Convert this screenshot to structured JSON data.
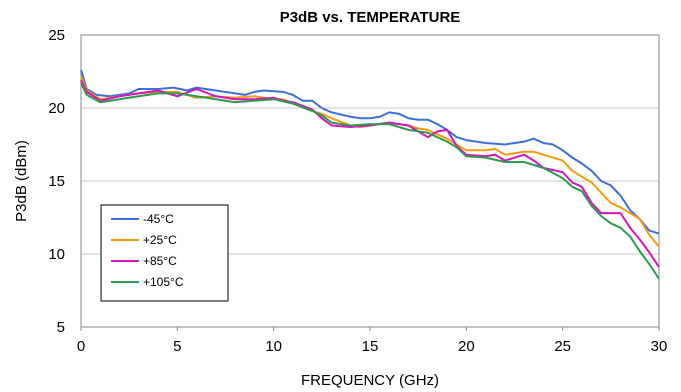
{
  "chart_data": {
    "type": "line",
    "title": "P3dB vs. TEMPERATURE",
    "xlabel": "FREQUENCY (GHz)",
    "ylabel": "P3dB (dBm)",
    "xlim": [
      0,
      30
    ],
    "ylim": [
      5,
      25
    ],
    "xticks": [
      0,
      5,
      10,
      15,
      20,
      25,
      30
    ],
    "yticks": [
      5,
      10,
      15,
      20,
      25
    ],
    "grid": "horizontal",
    "legend_position": "bottom-left",
    "series": [
      {
        "name": "-45°C",
        "color": "#3a70d8",
        "points": [
          [
            0,
            22.6
          ],
          [
            0.3,
            21.3
          ],
          [
            0.8,
            20.9
          ],
          [
            1.5,
            20.8
          ],
          [
            2.5,
            21.0
          ],
          [
            3.0,
            21.3
          ],
          [
            4.0,
            21.3
          ],
          [
            4.8,
            21.4
          ],
          [
            5.5,
            21.2
          ],
          [
            6.0,
            21.4
          ],
          [
            7.0,
            21.2
          ],
          [
            8.0,
            21.0
          ],
          [
            8.5,
            20.9
          ],
          [
            9.0,
            21.1
          ],
          [
            9.5,
            21.2
          ],
          [
            10.5,
            21.1
          ],
          [
            11.0,
            20.9
          ],
          [
            11.5,
            20.5
          ],
          [
            12.0,
            20.5
          ],
          [
            12.5,
            20.0
          ],
          [
            13.0,
            19.7
          ],
          [
            14.0,
            19.4
          ],
          [
            14.5,
            19.3
          ],
          [
            15.0,
            19.3
          ],
          [
            15.5,
            19.4
          ],
          [
            16.0,
            19.7
          ],
          [
            16.5,
            19.6
          ],
          [
            17.0,
            19.3
          ],
          [
            17.5,
            19.2
          ],
          [
            18.0,
            19.2
          ],
          [
            18.5,
            18.9
          ],
          [
            19.0,
            18.5
          ],
          [
            19.5,
            18.0
          ],
          [
            20.0,
            17.8
          ],
          [
            21.0,
            17.6
          ],
          [
            22.0,
            17.5
          ],
          [
            22.5,
            17.6
          ],
          [
            23.0,
            17.7
          ],
          [
            23.5,
            17.9
          ],
          [
            24.0,
            17.6
          ],
          [
            24.5,
            17.5
          ],
          [
            25.0,
            17.1
          ],
          [
            25.5,
            16.6
          ],
          [
            26.0,
            16.2
          ],
          [
            26.5,
            15.7
          ],
          [
            27.0,
            15.0
          ],
          [
            27.5,
            14.7
          ],
          [
            28.0,
            14.0
          ],
          [
            28.5,
            13.0
          ],
          [
            29.0,
            12.4
          ],
          [
            29.5,
            11.6
          ],
          [
            30.0,
            11.4
          ]
        ]
      },
      {
        "name": "+25°C",
        "color": "#f59a10",
        "points": [
          [
            0,
            22.2
          ],
          [
            0.3,
            21.2
          ],
          [
            1.0,
            20.6
          ],
          [
            2.0,
            20.8
          ],
          [
            3.0,
            21.0
          ],
          [
            4.0,
            21.1
          ],
          [
            5.0,
            21.1
          ],
          [
            6.0,
            20.7
          ],
          [
            7.0,
            20.8
          ],
          [
            8.0,
            20.7
          ],
          [
            9.0,
            20.8
          ],
          [
            10.0,
            20.6
          ],
          [
            10.5,
            20.6
          ],
          [
            11.0,
            20.3
          ],
          [
            12.0,
            19.8
          ],
          [
            12.5,
            19.6
          ],
          [
            13.0,
            19.3
          ],
          [
            14.0,
            18.8
          ],
          [
            14.5,
            18.7
          ],
          [
            15.0,
            18.8
          ],
          [
            16.0,
            19.0
          ],
          [
            17.0,
            18.8
          ],
          [
            17.5,
            18.6
          ],
          [
            18.0,
            18.5
          ],
          [
            18.5,
            18.2
          ],
          [
            19.0,
            17.9
          ],
          [
            19.5,
            17.5
          ],
          [
            20.0,
            17.1
          ],
          [
            21.0,
            17.1
          ],
          [
            21.5,
            17.2
          ],
          [
            22.0,
            16.8
          ],
          [
            23.0,
            17.0
          ],
          [
            23.5,
            17.0
          ],
          [
            24.0,
            16.8
          ],
          [
            25.0,
            16.4
          ],
          [
            25.5,
            15.7
          ],
          [
            26.0,
            15.3
          ],
          [
            26.5,
            14.9
          ],
          [
            27.0,
            14.2
          ],
          [
            27.5,
            13.5
          ],
          [
            28.0,
            13.2
          ],
          [
            28.5,
            12.8
          ],
          [
            29.0,
            12.4
          ],
          [
            29.5,
            11.3
          ],
          [
            30.0,
            10.5
          ]
        ]
      },
      {
        "name": "+85°C",
        "color": "#d515c0",
        "points": [
          [
            0,
            21.9
          ],
          [
            0.3,
            21.1
          ],
          [
            1.0,
            20.5
          ],
          [
            2.0,
            20.8
          ],
          [
            3.0,
            21.0
          ],
          [
            4.0,
            21.2
          ],
          [
            5.0,
            20.8
          ],
          [
            6.0,
            21.3
          ],
          [
            7.0,
            20.8
          ],
          [
            8.0,
            20.6
          ],
          [
            9.0,
            20.6
          ],
          [
            10.0,
            20.7
          ],
          [
            10.5,
            20.5
          ],
          [
            11.0,
            20.4
          ],
          [
            12.0,
            19.9
          ],
          [
            12.5,
            19.3
          ],
          [
            13.0,
            18.8
          ],
          [
            14.0,
            18.7
          ],
          [
            15.0,
            18.8
          ],
          [
            16.0,
            19.0
          ],
          [
            16.5,
            18.9
          ],
          [
            17.0,
            18.8
          ],
          [
            17.5,
            18.4
          ],
          [
            18.0,
            18.0
          ],
          [
            18.5,
            18.4
          ],
          [
            19.0,
            18.5
          ],
          [
            19.5,
            17.4
          ],
          [
            20.0,
            16.8
          ],
          [
            21.0,
            16.7
          ],
          [
            21.5,
            16.8
          ],
          [
            22.0,
            16.4
          ],
          [
            23.0,
            16.8
          ],
          [
            23.5,
            16.4
          ],
          [
            24.0,
            15.9
          ],
          [
            25.0,
            15.6
          ],
          [
            25.5,
            14.9
          ],
          [
            26.0,
            14.6
          ],
          [
            26.5,
            13.5
          ],
          [
            27.0,
            12.8
          ],
          [
            28.0,
            12.8
          ],
          [
            28.5,
            11.8
          ],
          [
            29.0,
            11.0
          ],
          [
            29.5,
            10.1
          ],
          [
            30.0,
            9.1
          ]
        ]
      },
      {
        "name": "+105°C",
        "color": "#2e9a50",
        "points": [
          [
            0,
            21.7
          ],
          [
            0.3,
            20.9
          ],
          [
            1.0,
            20.4
          ],
          [
            2.0,
            20.6
          ],
          [
            3.0,
            20.8
          ],
          [
            4.0,
            21.0
          ],
          [
            5.0,
            21.0
          ],
          [
            6.0,
            20.8
          ],
          [
            7.0,
            20.6
          ],
          [
            8.0,
            20.4
          ],
          [
            9.0,
            20.5
          ],
          [
            10.0,
            20.6
          ],
          [
            11.0,
            20.3
          ],
          [
            12.0,
            19.8
          ],
          [
            12.5,
            19.5
          ],
          [
            13.0,
            19.0
          ],
          [
            14.0,
            18.8
          ],
          [
            15.0,
            18.9
          ],
          [
            16.0,
            18.9
          ],
          [
            17.0,
            18.5
          ],
          [
            18.0,
            18.3
          ],
          [
            19.0,
            17.7
          ],
          [
            19.5,
            17.3
          ],
          [
            20.0,
            16.7
          ],
          [
            21.0,
            16.6
          ],
          [
            22.0,
            16.3
          ],
          [
            23.0,
            16.3
          ],
          [
            24.0,
            15.9
          ],
          [
            25.0,
            15.2
          ],
          [
            25.5,
            14.6
          ],
          [
            26.0,
            14.3
          ],
          [
            26.5,
            13.3
          ],
          [
            27.0,
            12.6
          ],
          [
            27.5,
            12.1
          ],
          [
            28.0,
            11.8
          ],
          [
            28.5,
            11.2
          ],
          [
            29.0,
            10.2
          ],
          [
            29.5,
            9.3
          ],
          [
            30.0,
            8.3
          ]
        ]
      }
    ]
  }
}
